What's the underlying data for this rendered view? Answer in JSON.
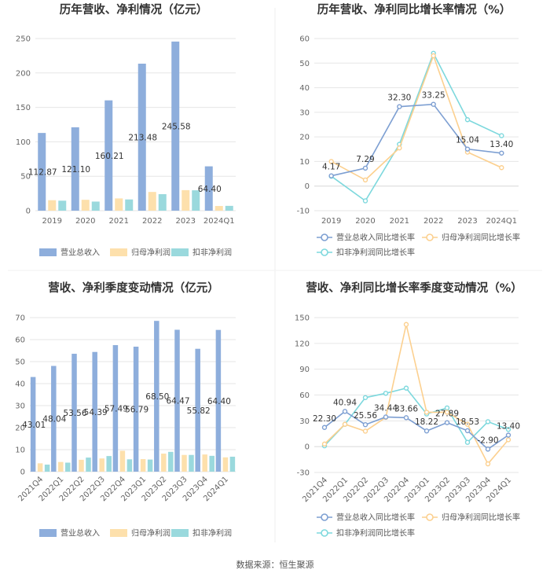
{
  "source_text": "数据来源：恒生聚源",
  "colors": {
    "revenue": "#8eaedc",
    "net_profit": "#fde0ac",
    "deducted_profit": "#9ad9dd",
    "rev_line": "#7d9fd2",
    "np_line": "#fcd08f",
    "dp_line": "#7dd8dd"
  },
  "chart_data": [
    {
      "id": "annual-bars",
      "type": "bar",
      "title": "历年营收、净利情况（亿元）",
      "categories": [
        "2019",
        "2020",
        "2021",
        "2022",
        "2023",
        "2024Q1"
      ],
      "ylim": [
        0,
        250
      ],
      "yticks": [
        0,
        50,
        100,
        150,
        200,
        250
      ],
      "series": [
        {
          "name": "营业总收入",
          "color_key": "revenue",
          "values": [
            112.87,
            121.1,
            160.21,
            213.48,
            245.58,
            64.4
          ],
          "labels": [
            "112.87",
            "121.10",
            "160.21",
            "213.48",
            "245.58",
            "64.40"
          ]
        },
        {
          "name": "归母净利润",
          "color_key": "net_profit",
          "values": [
            15.2,
            15.8,
            17.8,
            27.2,
            29.8,
            6.8
          ]
        },
        {
          "name": "扣非净利润",
          "color_key": "deducted_profit",
          "values": [
            14.5,
            13.2,
            16.3,
            24.0,
            29.6,
            7.0
          ]
        }
      ]
    },
    {
      "id": "annual-growth",
      "type": "line",
      "title": "历年营收、净利同比增长率情况（%）",
      "categories": [
        "2019",
        "2020",
        "2021",
        "2022",
        "2023",
        "2024Q1"
      ],
      "ylim": [
        -10,
        60
      ],
      "yticks": [
        -10,
        0,
        10,
        20,
        30,
        40,
        50,
        60
      ],
      "series": [
        {
          "name": "营业总收入同比增长率",
          "color_key": "rev_line",
          "values": [
            4.17,
            7.29,
            32.3,
            33.25,
            15.04,
            13.4
          ],
          "labels": [
            "4.17",
            "7.29",
            "32.30",
            "33.25",
            "15.04",
            "13.40"
          ]
        },
        {
          "name": "归母净利润同比增长率",
          "color_key": "np_line",
          "values": [
            10.0,
            2.5,
            15.5,
            53.0,
            13.8,
            7.5
          ]
        },
        {
          "name": "扣非净利润同比增长率",
          "color_key": "dp_line",
          "values": [
            4.0,
            -6.0,
            17.0,
            54.0,
            27.0,
            20.5
          ]
        }
      ]
    },
    {
      "id": "quarterly-bars",
      "type": "bar",
      "title": "营收、净利季度变动情况（亿元）",
      "categories": [
        "2021Q4",
        "2022Q1",
        "2022Q2",
        "2022Q3",
        "2022Q4",
        "2023Q1",
        "2023Q2",
        "2023Q3",
        "2023Q4",
        "2024Q1"
      ],
      "ylim": [
        0,
        70
      ],
      "yticks": [
        0,
        10,
        20,
        30,
        40,
        50,
        60,
        70
      ],
      "series": [
        {
          "name": "营业总收入",
          "color_key": "revenue",
          "values": [
            43.01,
            48.04,
            53.56,
            54.39,
            57.49,
            56.79,
            68.5,
            64.47,
            55.82,
            64.4
          ],
          "labels": [
            "43.01",
            "48.04",
            "53.56",
            "54.39",
            "57.49",
            "56.79",
            "68.50",
            "64.47",
            "55.82",
            "64.40"
          ]
        },
        {
          "name": "归母净利润",
          "color_key": "net_profit",
          "values": [
            3.8,
            4.4,
            5.4,
            6.0,
            9.5,
            5.7,
            8.2,
            7.6,
            7.8,
            6.5
          ]
        },
        {
          "name": "扣非净利润",
          "color_key": "deducted_profit",
          "values": [
            3.2,
            4.1,
            6.4,
            7.1,
            5.6,
            5.5,
            9.0,
            7.6,
            7.2,
            6.8
          ]
        }
      ]
    },
    {
      "id": "quarterly-growth",
      "type": "line",
      "title": "营收、净利同比增长率季度变动情况（%）",
      "categories": [
        "2021Q4",
        "2022Q1",
        "2022Q2",
        "2022Q3",
        "2022Q4",
        "2023Q1",
        "2023Q2",
        "2023Q3",
        "2023Q4",
        "2024Q1"
      ],
      "ylim": [
        -30,
        150
      ],
      "yticks": [
        -30,
        0,
        30,
        60,
        90,
        120,
        150
      ],
      "series": [
        {
          "name": "营业总收入同比增长率",
          "color_key": "rev_line",
          "values": [
            22.3,
            40.94,
            25.56,
            34.44,
            33.66,
            18.22,
            27.89,
            18.53,
            -2.9,
            13.4
          ],
          "labels": [
            "22.30",
            "40.94",
            "25.56",
            "34.44",
            "33.66",
            "18.22",
            "27.89",
            "18.53",
            "-2.90",
            "13.40"
          ]
        },
        {
          "name": "归母净利润同比增长率",
          "color_key": "np_line",
          "values": [
            3,
            26,
            18,
            34,
            142,
            40,
            40,
            26,
            -20,
            8
          ]
        },
        {
          "name": "扣非净利润同比增长率",
          "color_key": "dp_line",
          "values": [
            1,
            26,
            57,
            62,
            68,
            38,
            45,
            5,
            29,
            20
          ]
        }
      ]
    }
  ]
}
